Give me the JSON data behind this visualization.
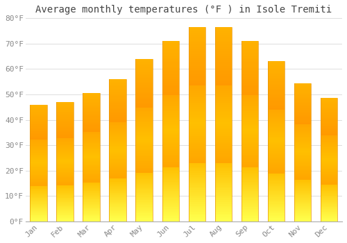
{
  "months": [
    "Jan",
    "Feb",
    "Mar",
    "Apr",
    "May",
    "Jun",
    "Jul",
    "Aug",
    "Sep",
    "Oct",
    "Nov",
    "Dec"
  ],
  "values": [
    46,
    47,
    50.5,
    56,
    64,
    71,
    76.5,
    76.5,
    71,
    63,
    54.5,
    48.5
  ],
  "bar_color_top": "#FFA500",
  "bar_color_mid": "#FFB800",
  "bar_color_bot": "#FFCC44",
  "title": "Average monthly temperatures (°F ) in Isole Tremiti",
  "ylim": [
    0,
    80
  ],
  "yticks": [
    0,
    10,
    20,
    30,
    40,
    50,
    60,
    70,
    80
  ],
  "ytick_labels": [
    "0°F",
    "10°F",
    "20°F",
    "30°F",
    "40°F",
    "50°F",
    "60°F",
    "70°F",
    "80°F"
  ],
  "background_color": "#FFFFFF",
  "plot_bg_color": "#FFFFFF",
  "grid_color": "#DDDDDD",
  "title_fontsize": 10,
  "tick_fontsize": 8,
  "title_color": "#444444",
  "tick_color": "#888888",
  "bar_width": 0.65
}
